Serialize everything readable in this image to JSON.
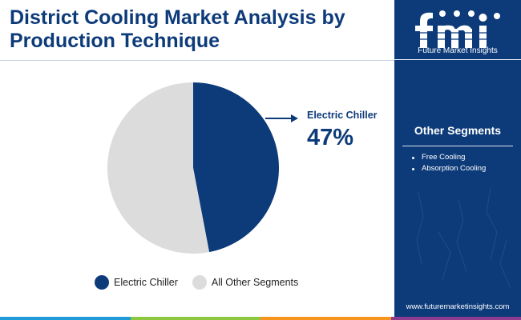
{
  "title": "District Cooling Market Analysis by Production Technique",
  "chart_data": {
    "type": "pie",
    "title": "District Cooling Market Analysis by Production Technique",
    "slices": [
      {
        "label": "Electric Chiller",
        "value": 47,
        "color": "#0d3b7a"
      },
      {
        "label": "All Other Segments",
        "value": 53,
        "color": "#dcdcdc"
      }
    ],
    "callout": {
      "label": "Electric Chiller",
      "value_text": "47%"
    },
    "legend": {
      "position": "bottom",
      "items": [
        {
          "label": "Electric Chiller",
          "color": "#0d3b7a"
        },
        {
          "label": "All Other Segments",
          "color": "#dcdcdc"
        }
      ]
    }
  },
  "side_panel": {
    "logo_text": "Future Market Insights",
    "other_segments_title": "Other Segments",
    "other_segments": [
      "Free Cooling",
      "Absorption Cooling"
    ],
    "website": "www.futuremarketinsights.com"
  },
  "colors": {
    "brand_blue": "#0d3b7a",
    "slice_grey": "#dcdcdc",
    "bottom_bar": [
      "#1f9bd7",
      "#8dc63f",
      "#f7941d",
      "#8e3b8f"
    ]
  }
}
